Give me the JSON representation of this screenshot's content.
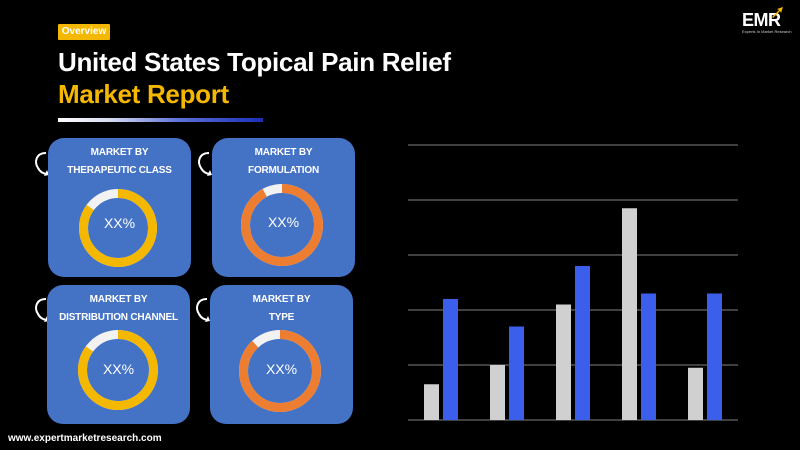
{
  "header": {
    "badge": "Overview",
    "title_line1": "United States Topical Pain Relief",
    "title_line2": "Market Report"
  },
  "logo": {
    "text": "EMR",
    "tagline": "Experts In Market Research"
  },
  "cards": [
    {
      "line1": "MARKET BY",
      "line2": "THERAPEUTIC CLASS",
      "value": "XX%",
      "ring_color": "#f5b800",
      "ring_fill": 0.85
    },
    {
      "line1": "MARKET BY",
      "line2": "FORMULATION",
      "value": "XX%",
      "ring_color": "#ed7d31",
      "ring_fill": 0.92
    },
    {
      "line1": "MARKET BY",
      "line2": "DISTRIBUTION CHANNEL",
      "value": "XX%",
      "ring_color": "#f5b800",
      "ring_fill": 0.85
    },
    {
      "line1": "MARKET BY",
      "line2": "TYPE",
      "value": "XX%",
      "ring_color": "#ed7d31",
      "ring_fill": 0.88
    }
  ],
  "footer": {
    "website": "www.expertmarketresearch.com"
  },
  "chart_data": {
    "type": "bar",
    "categories": [
      "",
      "",
      "",
      "",
      ""
    ],
    "series": [
      {
        "color": "#d0d0d0",
        "values": [
          13,
          20,
          42,
          77,
          19
        ]
      },
      {
        "color": "#3b5fea",
        "values": [
          44,
          34,
          56,
          46,
          46
        ]
      }
    ],
    "ylim": [
      0,
      100
    ],
    "grid": true
  }
}
